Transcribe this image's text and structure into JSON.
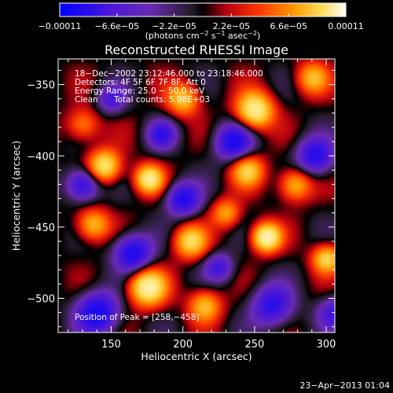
{
  "chart_data": {
    "type": "heatmap",
    "title": "Reconstructed RHESSI Image",
    "xlabel": "Heliocentric X (arcsec)",
    "ylabel": "Heliocentric Y (arcsec)",
    "xlim": [
      113,
      306
    ],
    "ylim": [
      -524,
      -332
    ],
    "x_ticks": [
      150,
      200,
      250,
      300
    ],
    "x_tick_labels": [
      "150",
      "200",
      "250",
      "300"
    ],
    "y_ticks": [
      -350,
      -400,
      -450,
      -500
    ],
    "y_tick_labels": [
      "−350",
      "−400",
      "−450",
      "−500"
    ],
    "colorbar": {
      "min": -0.00011,
      "max": 0.00011,
      "tick_values": [
        -0.00011,
        -6.6e-05,
        -2.2e-05,
        2.2e-05,
        6.6e-05,
        0.00011
      ],
      "tick_labels": [
        "−0.00011",
        "−6.6e−05",
        "−2.2e−05",
        "2.2e−05",
        "6.6e−05",
        "0.00011"
      ],
      "unit_prefix": "(photons cm",
      "unit_exp1": "−2",
      "unit_mid": " s",
      "unit_exp2": "−1",
      "unit_mid2": " asec",
      "unit_exp3": "−2",
      "unit_suffix": ")"
    },
    "annotations": {
      "time_range": "18−Dec−2002 23:12:46.000 to 23:18:46.000",
      "detectors": "Detectors: 4F 5F 6F 7F 8F, Att 0",
      "energy": "Energy Range: 25.0 − 50.0 keV",
      "clean_label": "Clean",
      "total_counts": "Total counts: 5.98E+03",
      "peak_position": "Position of Peak = [258,−458]"
    },
    "peak": [
      258,
      -458
    ],
    "features": [
      {
        "x": 258,
        "y": -457,
        "amp": 1.0,
        "sigma": 7
      },
      {
        "x": 250,
        "y": -368,
        "amp": 0.92,
        "sigma": 9
      },
      {
        "x": 176,
        "y": -416,
        "amp": 0.85,
        "sigma": 7
      },
      {
        "x": 175,
        "y": -492,
        "amp": 0.95,
        "sigma": 9
      },
      {
        "x": 145,
        "y": -407,
        "amp": 0.82,
        "sigma": 8
      },
      {
        "x": 205,
        "y": -460,
        "amp": 0.7,
        "sigma": 8
      },
      {
        "x": 278,
        "y": -420,
        "amp": 0.6,
        "sigma": 8
      },
      {
        "x": 200,
        "y": -360,
        "amp": 0.62,
        "sigma": 8
      },
      {
        "x": 215,
        "y": -505,
        "amp": 0.6,
        "sigma": 8
      },
      {
        "x": 300,
        "y": -472,
        "amp": 0.7,
        "sigma": 7
      },
      {
        "x": 137,
        "y": -448,
        "amp": 0.6,
        "sigma": 8
      },
      {
        "x": 130,
        "y": -378,
        "amp": 0.45,
        "sigma": 8
      },
      {
        "x": 245,
        "y": -410,
        "amp": 0.65,
        "sigma": 8
      },
      {
        "x": 230,
        "y": -440,
        "amp": 0.5,
        "sigma": 7
      },
      {
        "x": 290,
        "y": -345,
        "amp": 0.55,
        "sigma": 8
      },
      {
        "x": 165,
        "y": -468,
        "amp": -0.8,
        "sigma": 9
      },
      {
        "x": 140,
        "y": -510,
        "amp": -0.85,
        "sigma": 10
      },
      {
        "x": 130,
        "y": -420,
        "amp": -0.7,
        "sigma": 8
      },
      {
        "x": 235,
        "y": -390,
        "amp": -0.75,
        "sigma": 9
      },
      {
        "x": 200,
        "y": -430,
        "amp": -0.75,
        "sigma": 8
      },
      {
        "x": 262,
        "y": -505,
        "amp": -0.65,
        "sigma": 10
      },
      {
        "x": 292,
        "y": -400,
        "amp": -0.7,
        "sigma": 9
      },
      {
        "x": 305,
        "y": -510,
        "amp": -0.5,
        "sigma": 8
      },
      {
        "x": 185,
        "y": -385,
        "amp": -0.55,
        "sigma": 7
      },
      {
        "x": 225,
        "y": -478,
        "amp": -0.5,
        "sigma": 7
      },
      {
        "x": 150,
        "y": -360,
        "amp": -0.45,
        "sigma": 7
      }
    ]
  },
  "footer": {
    "date_stamp": "23−Apr−2013 01:04"
  }
}
